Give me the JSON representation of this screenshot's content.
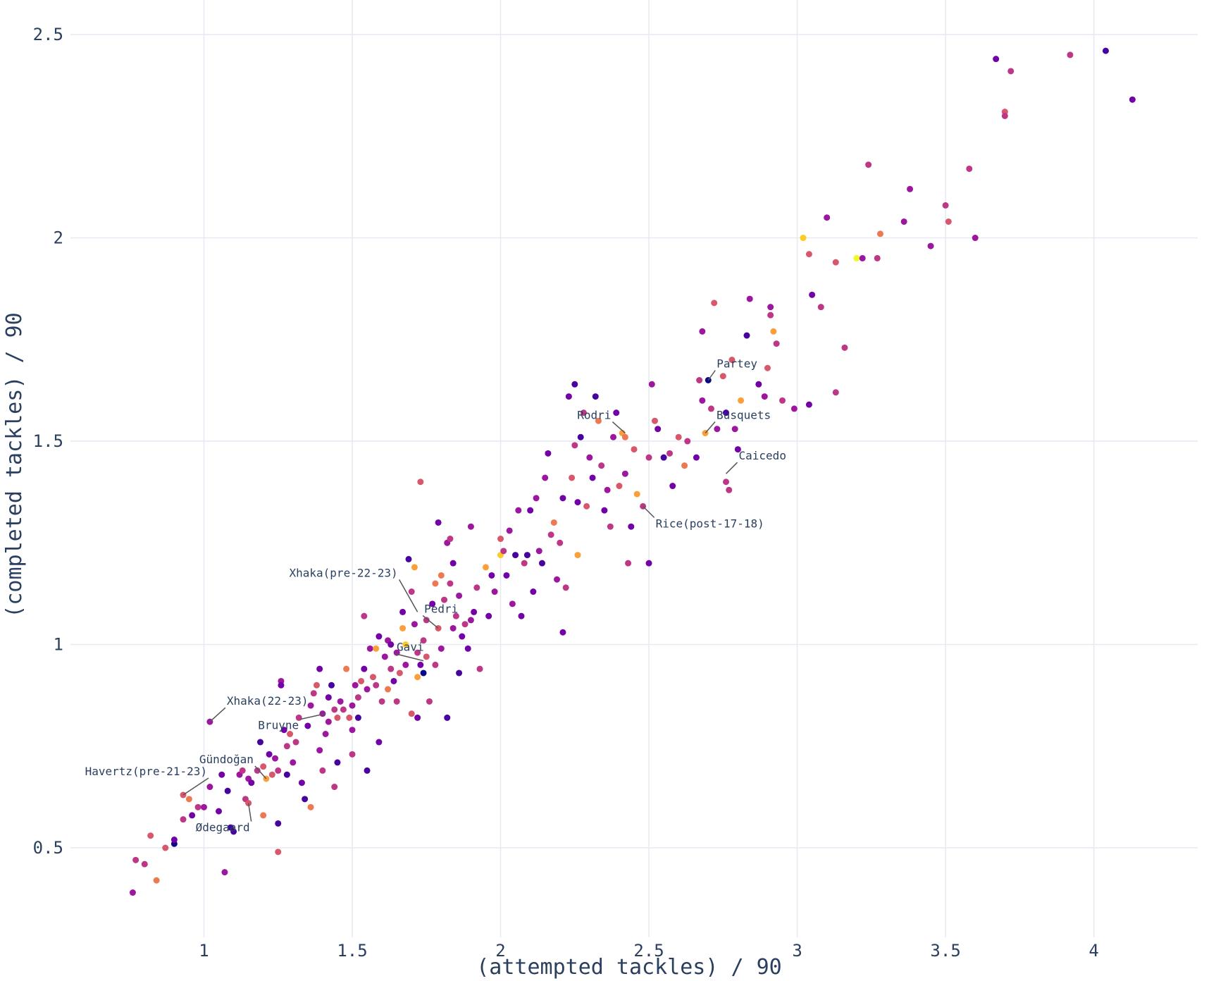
{
  "chart_data": {
    "type": "scatter",
    "title": "",
    "xlabel": "(attempted tackles) / 90",
    "ylabel": "(completed tackles) / 90",
    "xlim": [
      0.55,
      4.35
    ],
    "ylim": [
      0.28,
      2.585
    ],
    "xticks": [
      1,
      1.5,
      2,
      2.5,
      3,
      3.5,
      4
    ],
    "yticks": [
      0.5,
      1,
      1.5,
      2,
      2.5
    ],
    "tick_labels_x": [
      "1",
      "1.5",
      "2",
      "2.5",
      "3",
      "3.5",
      "4"
    ],
    "tick_labels_y": [
      "0.5",
      "1",
      "1.5",
      "2",
      "2.5"
    ],
    "grid": true,
    "colorscale": [
      "#0d0887",
      "#46039f",
      "#7201a8",
      "#9c179e",
      "#bd3786",
      "#d8576b",
      "#ed7953",
      "#fb9f3a",
      "#fdca26",
      "#f0f921"
    ],
    "annotations": [
      {
        "text": "Partey",
        "x": 2.7,
        "y": 1.65,
        "dx": 10,
        "dy": -14,
        "anchor": "start"
      },
      {
        "text": "Rodri",
        "x": 2.42,
        "y": 1.52,
        "dx": -18,
        "dy": -16,
        "anchor": "end"
      },
      {
        "text": "Busquets",
        "x": 2.69,
        "y": 1.52,
        "dx": 14,
        "dy": -16,
        "anchor": "start"
      },
      {
        "text": "Caicedo",
        "x": 2.76,
        "y": 1.42,
        "dx": 16,
        "dy": -16,
        "anchor": "start"
      },
      {
        "text": "Rice(post-17-18)",
        "x": 2.48,
        "y": 1.34,
        "dx": 16,
        "dy": 16,
        "anchor": "start"
      },
      {
        "text": "Xhaka(pre-22-23)",
        "x": 1.72,
        "y": 1.08,
        "dx": -26,
        "dy": -46,
        "anchor": "end"
      },
      {
        "text": "Pedri",
        "x": 1.79,
        "y": 1.04,
        "dx": -22,
        "dy": -18,
        "anchor": "start"
      },
      {
        "text": "Gavi",
        "x": 1.74,
        "y": 0.96,
        "dx": -40,
        "dy": -10,
        "anchor": "start"
      },
      {
        "text": "Xhaka(22-23)",
        "x": 1.02,
        "y": 0.81,
        "dx": 22,
        "dy": -20,
        "anchor": "start"
      },
      {
        "text": "Bruyne",
        "x": 1.41,
        "y": 0.83,
        "dx": -36,
        "dy": 8,
        "anchor": "end"
      },
      {
        "text": "Gündoğan",
        "x": 1.21,
        "y": 0.67,
        "dx": -16,
        "dy": -18,
        "anchor": "end"
      },
      {
        "text": "Havertz(pre-21-23)",
        "x": 0.93,
        "y": 0.63,
        "dx": 36,
        "dy": -24,
        "anchor": "end"
      },
      {
        "text": "Ødegaard",
        "x": 1.15,
        "y": 0.61,
        "dx": 4,
        "dy": 26,
        "anchor": "end"
      }
    ],
    "points": [
      [
        0.76,
        0.39,
        3
      ],
      [
        0.77,
        0.47,
        4
      ],
      [
        0.8,
        0.46,
        4
      ],
      [
        0.82,
        0.53,
        5
      ],
      [
        0.84,
        0.42,
        6
      ],
      [
        0.87,
        0.5,
        5
      ],
      [
        0.9,
        0.51,
        0
      ],
      [
        0.9,
        0.52,
        2
      ],
      [
        0.93,
        0.57,
        4
      ],
      [
        0.93,
        0.63,
        5
      ],
      [
        0.95,
        0.62,
        6
      ],
      [
        0.96,
        0.58,
        2
      ],
      [
        0.98,
        0.6,
        4
      ],
      [
        1.0,
        0.6,
        3
      ],
      [
        1.02,
        0.65,
        3
      ],
      [
        1.02,
        0.81,
        3
      ],
      [
        1.05,
        0.59,
        2
      ],
      [
        1.06,
        0.68,
        2
      ],
      [
        1.07,
        0.44,
        3
      ],
      [
        1.08,
        0.64,
        1
      ],
      [
        1.09,
        0.55,
        1
      ],
      [
        1.1,
        0.54,
        1
      ],
      [
        1.12,
        0.68,
        3
      ],
      [
        1.13,
        0.69,
        4
      ],
      [
        1.14,
        0.62,
        4
      ],
      [
        1.15,
        0.61,
        5
      ],
      [
        1.15,
        0.67,
        3
      ],
      [
        1.16,
        0.66,
        2
      ],
      [
        1.18,
        0.69,
        4
      ],
      [
        1.19,
        0.76,
        1
      ],
      [
        1.2,
        0.58,
        6
      ],
      [
        1.2,
        0.7,
        5
      ],
      [
        1.21,
        0.67,
        7
      ],
      [
        1.22,
        0.73,
        2
      ],
      [
        1.23,
        0.68,
        5
      ],
      [
        1.24,
        0.72,
        3
      ],
      [
        1.25,
        0.69,
        4
      ],
      [
        1.25,
        0.56,
        1
      ],
      [
        1.26,
        0.91,
        3
      ],
      [
        1.26,
        0.9,
        2
      ],
      [
        1.25,
        0.49,
        5
      ],
      [
        1.27,
        0.79,
        2
      ],
      [
        1.28,
        0.68,
        1
      ],
      [
        1.28,
        0.75,
        4
      ],
      [
        1.29,
        0.78,
        5
      ],
      [
        1.3,
        0.71,
        3
      ],
      [
        1.31,
        0.76,
        4
      ],
      [
        1.32,
        0.82,
        4
      ],
      [
        1.33,
        0.66,
        2
      ],
      [
        1.34,
        0.62,
        1
      ],
      [
        1.35,
        0.8,
        2
      ],
      [
        1.36,
        0.85,
        3
      ],
      [
        1.36,
        0.6,
        6
      ],
      [
        1.37,
        0.88,
        4
      ],
      [
        1.38,
        0.9,
        5
      ],
      [
        1.39,
        0.74,
        3
      ],
      [
        1.39,
        0.94,
        2
      ],
      [
        1.4,
        0.83,
        3
      ],
      [
        1.4,
        0.69,
        4
      ],
      [
        1.41,
        0.78,
        3
      ],
      [
        1.42,
        0.87,
        2
      ],
      [
        1.42,
        0.81,
        3
      ],
      [
        1.43,
        0.9,
        1
      ],
      [
        1.44,
        0.84,
        4
      ],
      [
        1.44,
        0.65,
        4
      ],
      [
        1.45,
        0.82,
        5
      ],
      [
        1.45,
        0.71,
        1
      ],
      [
        1.46,
        0.86,
        3
      ],
      [
        1.47,
        0.84,
        4
      ],
      [
        1.48,
        0.94,
        6
      ],
      [
        1.49,
        0.82,
        5
      ],
      [
        1.5,
        0.79,
        3
      ],
      [
        1.5,
        0.85,
        3
      ],
      [
        1.5,
        0.73,
        4
      ],
      [
        1.51,
        0.9,
        3
      ],
      [
        1.52,
        0.82,
        1
      ],
      [
        1.52,
        0.87,
        4
      ],
      [
        1.53,
        0.91,
        5
      ],
      [
        1.54,
        0.94,
        2
      ],
      [
        1.54,
        1.07,
        4
      ],
      [
        1.55,
        0.89,
        3
      ],
      [
        1.55,
        0.69,
        1
      ],
      [
        1.56,
        0.99,
        3
      ],
      [
        1.57,
        0.92,
        5
      ],
      [
        1.58,
        0.99,
        7
      ],
      [
        1.58,
        0.9,
        4
      ],
      [
        1.59,
        1.02,
        2
      ],
      [
        1.59,
        0.76,
        2
      ],
      [
        1.6,
        0.86,
        4
      ],
      [
        1.61,
        0.97,
        3
      ],
      [
        1.62,
        0.89,
        6
      ],
      [
        1.62,
        1.01,
        3
      ],
      [
        1.63,
        0.94,
        4
      ],
      [
        1.63,
        1.0,
        2
      ],
      [
        1.64,
        0.91,
        2
      ],
      [
        1.65,
        0.98,
        3
      ],
      [
        1.65,
        0.86,
        4
      ],
      [
        1.66,
        0.93,
        5
      ],
      [
        1.67,
        1.04,
        7
      ],
      [
        1.67,
        1.08,
        2
      ],
      [
        1.68,
        1.0,
        8
      ],
      [
        1.68,
        0.95,
        3
      ],
      [
        1.69,
        1.21,
        1
      ],
      [
        1.7,
        1.13,
        4
      ],
      [
        1.7,
        0.83,
        5
      ],
      [
        1.71,
        1.19,
        7
      ],
      [
        1.71,
        1.05,
        3
      ],
      [
        1.72,
        0.98,
        4
      ],
      [
        1.72,
        0.92,
        7
      ],
      [
        1.72,
        0.82,
        2
      ],
      [
        1.73,
        0.95,
        2
      ],
      [
        1.73,
        1.4,
        5
      ],
      [
        1.74,
        0.93,
        0
      ],
      [
        1.74,
        1.01,
        4
      ],
      [
        1.75,
        0.97,
        5
      ],
      [
        1.75,
        1.06,
        4
      ],
      [
        1.76,
        0.86,
        4
      ],
      [
        1.77,
        1.1,
        2
      ],
      [
        1.78,
        0.95,
        4
      ],
      [
        1.78,
        1.15,
        6
      ],
      [
        1.79,
        1.04,
        5
      ],
      [
        1.79,
        1.3,
        2
      ],
      [
        1.8,
        1.17,
        6
      ],
      [
        1.8,
        0.99,
        3
      ],
      [
        1.81,
        1.11,
        4
      ],
      [
        1.82,
        0.82,
        1
      ],
      [
        1.82,
        1.25,
        3
      ],
      [
        1.83,
        1.26,
        4
      ],
      [
        1.83,
        1.15,
        4
      ],
      [
        1.84,
        1.2,
        2
      ],
      [
        1.84,
        1.04,
        3
      ],
      [
        1.85,
        1.07,
        4
      ],
      [
        1.86,
        0.93,
        1
      ],
      [
        1.86,
        1.12,
        3
      ],
      [
        1.87,
        1.02,
        2
      ],
      [
        1.88,
        1.05,
        4
      ],
      [
        1.89,
        0.99,
        2
      ],
      [
        1.9,
        1.06,
        3
      ],
      [
        1.9,
        1.29,
        3
      ],
      [
        1.91,
        1.08,
        2
      ],
      [
        1.92,
        1.14,
        4
      ],
      [
        1.93,
        0.94,
        4
      ],
      [
        1.95,
        1.19,
        7
      ],
      [
        1.96,
        1.07,
        2
      ],
      [
        1.97,
        1.17,
        2
      ],
      [
        1.98,
        1.13,
        3
      ],
      [
        2.0,
        1.26,
        5
      ],
      [
        2.0,
        1.22,
        8
      ],
      [
        2.01,
        1.23,
        4
      ],
      [
        2.02,
        1.17,
        2
      ],
      [
        2.03,
        1.28,
        3
      ],
      [
        2.04,
        1.1,
        3
      ],
      [
        2.05,
        1.22,
        1
      ],
      [
        2.06,
        1.33,
        3
      ],
      [
        2.07,
        1.07,
        2
      ],
      [
        2.08,
        1.2,
        4
      ],
      [
        2.09,
        1.22,
        1
      ],
      [
        2.1,
        1.33,
        2
      ],
      [
        2.11,
        1.13,
        2
      ],
      [
        2.12,
        1.36,
        3
      ],
      [
        2.13,
        1.23,
        3
      ],
      [
        2.14,
        1.2,
        1
      ],
      [
        2.15,
        1.41,
        3
      ],
      [
        2.16,
        1.47,
        2
      ],
      [
        2.17,
        1.27,
        4
      ],
      [
        2.18,
        1.3,
        6
      ],
      [
        2.19,
        1.16,
        3
      ],
      [
        2.2,
        1.25,
        4
      ],
      [
        2.21,
        1.36,
        2
      ],
      [
        2.21,
        1.03,
        2
      ],
      [
        2.22,
        1.14,
        4
      ],
      [
        2.23,
        1.61,
        2
      ],
      [
        2.24,
        1.41,
        5
      ],
      [
        2.25,
        1.49,
        4
      ],
      [
        2.25,
        1.64,
        1
      ],
      [
        2.26,
        1.22,
        7
      ],
      [
        2.26,
        1.35,
        2
      ],
      [
        2.27,
        1.51,
        1
      ],
      [
        2.28,
        1.57,
        4
      ],
      [
        2.29,
        1.34,
        5
      ],
      [
        2.3,
        1.46,
        3
      ],
      [
        2.31,
        1.41,
        2
      ],
      [
        2.32,
        1.61,
        1
      ],
      [
        2.33,
        1.55,
        6
      ],
      [
        2.34,
        1.44,
        4
      ],
      [
        2.35,
        1.33,
        2
      ],
      [
        2.36,
        1.38,
        3
      ],
      [
        2.37,
        1.29,
        4
      ],
      [
        2.38,
        1.51,
        3
      ],
      [
        2.39,
        1.57,
        2
      ],
      [
        2.4,
        1.39,
        5
      ],
      [
        2.41,
        1.52,
        7
      ],
      [
        2.42,
        1.51,
        6
      ],
      [
        2.42,
        1.42,
        3
      ],
      [
        2.43,
        1.2,
        4
      ],
      [
        2.44,
        1.29,
        2
      ],
      [
        2.45,
        1.48,
        5
      ],
      [
        2.46,
        1.37,
        7
      ],
      [
        2.48,
        1.34,
        4
      ],
      [
        2.5,
        1.46,
        4
      ],
      [
        2.5,
        1.2,
        2
      ],
      [
        2.51,
        1.64,
        3
      ],
      [
        2.52,
        1.55,
        5
      ],
      [
        2.53,
        1.53,
        2
      ],
      [
        2.55,
        1.46,
        1
      ],
      [
        2.57,
        1.47,
        4
      ],
      [
        2.58,
        1.39,
        2
      ],
      [
        2.6,
        1.51,
        5
      ],
      [
        2.62,
        1.44,
        6
      ],
      [
        2.63,
        1.5,
        4
      ],
      [
        2.66,
        1.46,
        2
      ],
      [
        2.67,
        1.65,
        4
      ],
      [
        2.68,
        1.6,
        3
      ],
      [
        2.68,
        1.77,
        3
      ],
      [
        2.69,
        1.52,
        7
      ],
      [
        2.7,
        1.65,
        0
      ],
      [
        2.71,
        1.58,
        4
      ],
      [
        2.72,
        1.84,
        5
      ],
      [
        2.73,
        1.53,
        3
      ],
      [
        2.75,
        1.66,
        5
      ],
      [
        2.76,
        1.57,
        1
      ],
      [
        2.76,
        1.4,
        4
      ],
      [
        2.77,
        1.38,
        4
      ],
      [
        2.78,
        1.7,
        5
      ],
      [
        2.79,
        1.53,
        3
      ],
      [
        2.8,
        1.48,
        2
      ],
      [
        2.81,
        1.6,
        7
      ],
      [
        2.83,
        1.76,
        1
      ],
      [
        2.84,
        1.85,
        3
      ],
      [
        2.87,
        1.64,
        2
      ],
      [
        2.89,
        1.61,
        3
      ],
      [
        2.9,
        1.68,
        5
      ],
      [
        2.91,
        1.83,
        3
      ],
      [
        2.91,
        1.81,
        4
      ],
      [
        2.92,
        1.77,
        7
      ],
      [
        2.93,
        1.74,
        4
      ],
      [
        2.95,
        1.6,
        4
      ],
      [
        2.99,
        1.58,
        3
      ],
      [
        3.02,
        2.0,
        8
      ],
      [
        3.04,
        1.96,
        5
      ],
      [
        3.04,
        1.59,
        2
      ],
      [
        3.05,
        1.86,
        2
      ],
      [
        3.08,
        1.83,
        4
      ],
      [
        3.1,
        2.05,
        3
      ],
      [
        3.13,
        1.94,
        5
      ],
      [
        3.13,
        1.62,
        4
      ],
      [
        3.16,
        1.73,
        4
      ],
      [
        3.2,
        1.95,
        9
      ],
      [
        3.22,
        1.95,
        3
      ],
      [
        3.24,
        2.18,
        4
      ],
      [
        3.27,
        1.95,
        4
      ],
      [
        3.28,
        2.01,
        6
      ],
      [
        3.36,
        2.04,
        3
      ],
      [
        3.38,
        2.12,
        3
      ],
      [
        3.45,
        1.98,
        3
      ],
      [
        3.5,
        2.08,
        4
      ],
      [
        3.51,
        2.04,
        5
      ],
      [
        3.58,
        2.17,
        4
      ],
      [
        3.6,
        2.0,
        3
      ],
      [
        3.67,
        2.44,
        2
      ],
      [
        3.7,
        2.31,
        5
      ],
      [
        3.7,
        2.3,
        4
      ],
      [
        3.72,
        2.41,
        4
      ],
      [
        3.92,
        2.45,
        4
      ],
      [
        4.04,
        2.46,
        1
      ],
      [
        4.13,
        2.34,
        2
      ]
    ]
  }
}
